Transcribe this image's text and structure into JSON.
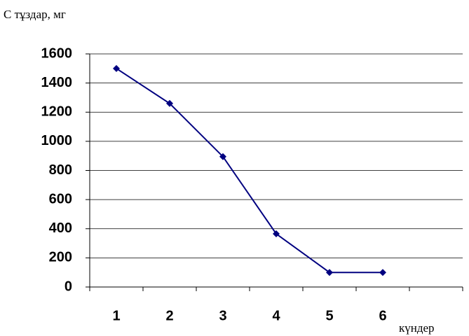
{
  "chart_data": {
    "type": "line",
    "y_label": "С тұздар, мг",
    "x_label": "күндер",
    "categories": [
      "1",
      "2",
      "3",
      "4",
      "5",
      "6",
      null
    ],
    "series": [
      {
        "name": null,
        "color": "#000080",
        "values": [
          1500,
          1260,
          895,
          365,
          100,
          100,
          null
        ]
      }
    ],
    "ylim": [
      0,
      1600
    ],
    "yticks": [
      0,
      200,
      400,
      600,
      800,
      1000,
      1200,
      1400,
      1600
    ],
    "grid": true
  }
}
